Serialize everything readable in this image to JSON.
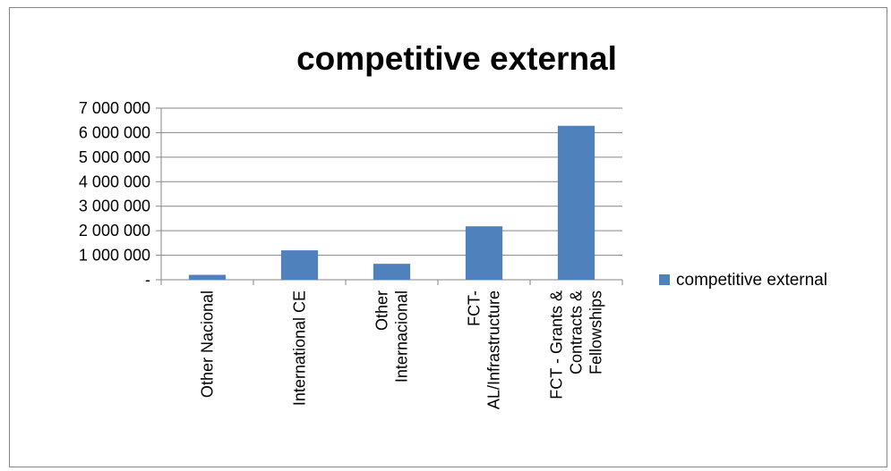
{
  "chart_data": {
    "type": "bar",
    "title": "competitive external",
    "categories": [
      [
        "Other Nacional"
      ],
      [
        "International CE"
      ],
      [
        "Other",
        "Internacional"
      ],
      [
        "FCT-",
        "AL/Infrastructure"
      ],
      [
        "FCT - Grants &",
        "Contracts &",
        "Fellowships"
      ]
    ],
    "series": [
      {
        "name": "competitive external",
        "values": [
          200000,
          1200000,
          650000,
          2180000,
          6280000
        ],
        "color": "#4F81BD"
      }
    ],
    "ylim": [
      0,
      7000000
    ],
    "yticks": [
      0,
      1000000,
      2000000,
      3000000,
      4000000,
      5000000,
      6000000,
      7000000
    ],
    "ytick_labels": [
      "-",
      "1 000 000",
      "2 000 000",
      "3 000 000",
      "4 000 000",
      "5 000 000",
      "6 000 000",
      "7 000 000"
    ],
    "grid": true,
    "legend": "right"
  }
}
